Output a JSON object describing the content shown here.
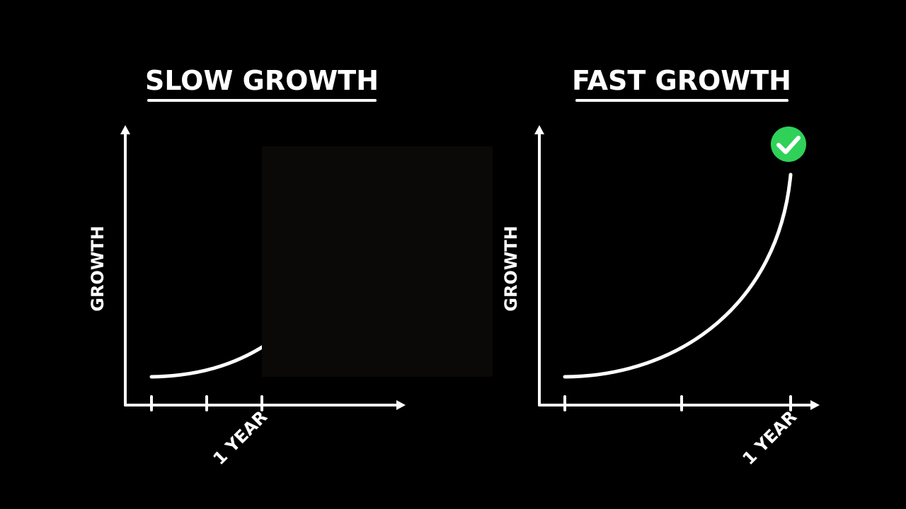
{
  "panels": [
    {
      "title": "SLOW GROWTH",
      "y_axis_label": "GROWTH",
      "x_label": "1 YEAR"
    },
    {
      "title": "FAST GROWTH",
      "y_axis_label": "GROWTH",
      "x_label": "1 YEAR"
    }
  ]
}
